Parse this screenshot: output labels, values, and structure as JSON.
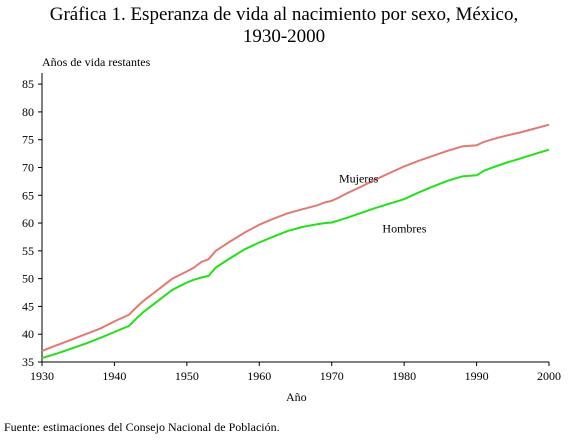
{
  "chart_data": {
    "type": "line",
    "title_line1": "Gráfica 1. Esperanza de vida al nacimiento por sexo, México,",
    "title_line2": "1930-2000",
    "ylabel": "Años de vida restantes",
    "xlabel": "Año",
    "xlim": [
      1930,
      2000
    ],
    "ylim": [
      35,
      87
    ],
    "x_ticks": [
      "1930",
      "1940",
      "1950",
      "1960",
      "1970",
      "1980",
      "1990",
      "2000"
    ],
    "y_ticks": [
      "35",
      "40",
      "45",
      "50",
      "55",
      "60",
      "65",
      "70",
      "75",
      "80",
      "85"
    ],
    "grid": false,
    "series": [
      {
        "name": "Mujeres",
        "color": "#e07a72",
        "x": [
          1930,
          1932,
          1934,
          1936,
          1938,
          1940,
          1942,
          1943,
          1944,
          1946,
          1948,
          1950,
          1951,
          1952,
          1953,
          1954,
          1956,
          1958,
          1960,
          1962,
          1964,
          1966,
          1968,
          1969,
          1970,
          1971,
          1972,
          1974,
          1976,
          1978,
          1980,
          1982,
          1984,
          1986,
          1988,
          1990,
          1991,
          1992,
          1994,
          1996,
          1998,
          2000
        ],
        "values": [
          37.0,
          38.0,
          39.0,
          40.0,
          41.0,
          42.3,
          43.5,
          44.8,
          46.0,
          48.0,
          50.0,
          51.3,
          52.0,
          53.0,
          53.5,
          55.0,
          56.7,
          58.3,
          59.7,
          60.8,
          61.8,
          62.5,
          63.2,
          63.7,
          64.0,
          64.6,
          65.3,
          66.5,
          67.8,
          69.0,
          70.2,
          71.2,
          72.1,
          73.0,
          73.8,
          74.0,
          74.6,
          75.0,
          75.7,
          76.3,
          77.0,
          77.7
        ]
      },
      {
        "name": "Hombres",
        "color": "#22e019",
        "x": [
          1930,
          1932,
          1934,
          1936,
          1938,
          1940,
          1942,
          1943,
          1944,
          1946,
          1948,
          1950,
          1951,
          1952,
          1953,
          1954,
          1956,
          1958,
          1960,
          1962,
          1964,
          1966,
          1968,
          1969,
          1970,
          1971,
          1972,
          1974,
          1976,
          1978,
          1980,
          1982,
          1984,
          1986,
          1988,
          1990,
          1991,
          1992,
          1994,
          1996,
          1998,
          2000
        ],
        "values": [
          35.7,
          36.5,
          37.4,
          38.3,
          39.3,
          40.4,
          41.5,
          42.8,
          44.0,
          46.0,
          48.0,
          49.3,
          49.8,
          50.2,
          50.5,
          52.0,
          53.7,
          55.3,
          56.5,
          57.6,
          58.6,
          59.3,
          59.8,
          60.0,
          60.1,
          60.5,
          60.9,
          61.8,
          62.7,
          63.5,
          64.3,
          65.5,
          66.6,
          67.6,
          68.4,
          68.6,
          69.4,
          69.9,
          70.8,
          71.6,
          72.4,
          73.2
        ]
      }
    ],
    "annotations": [
      {
        "text": "Mujeres",
        "x": 1971.0,
        "y": 68.0
      },
      {
        "text": "Hombres",
        "x": 1977.0,
        "y": 59.0
      }
    ]
  },
  "source_note": "Fuente: estimaciones del Consejo Nacional de Población."
}
